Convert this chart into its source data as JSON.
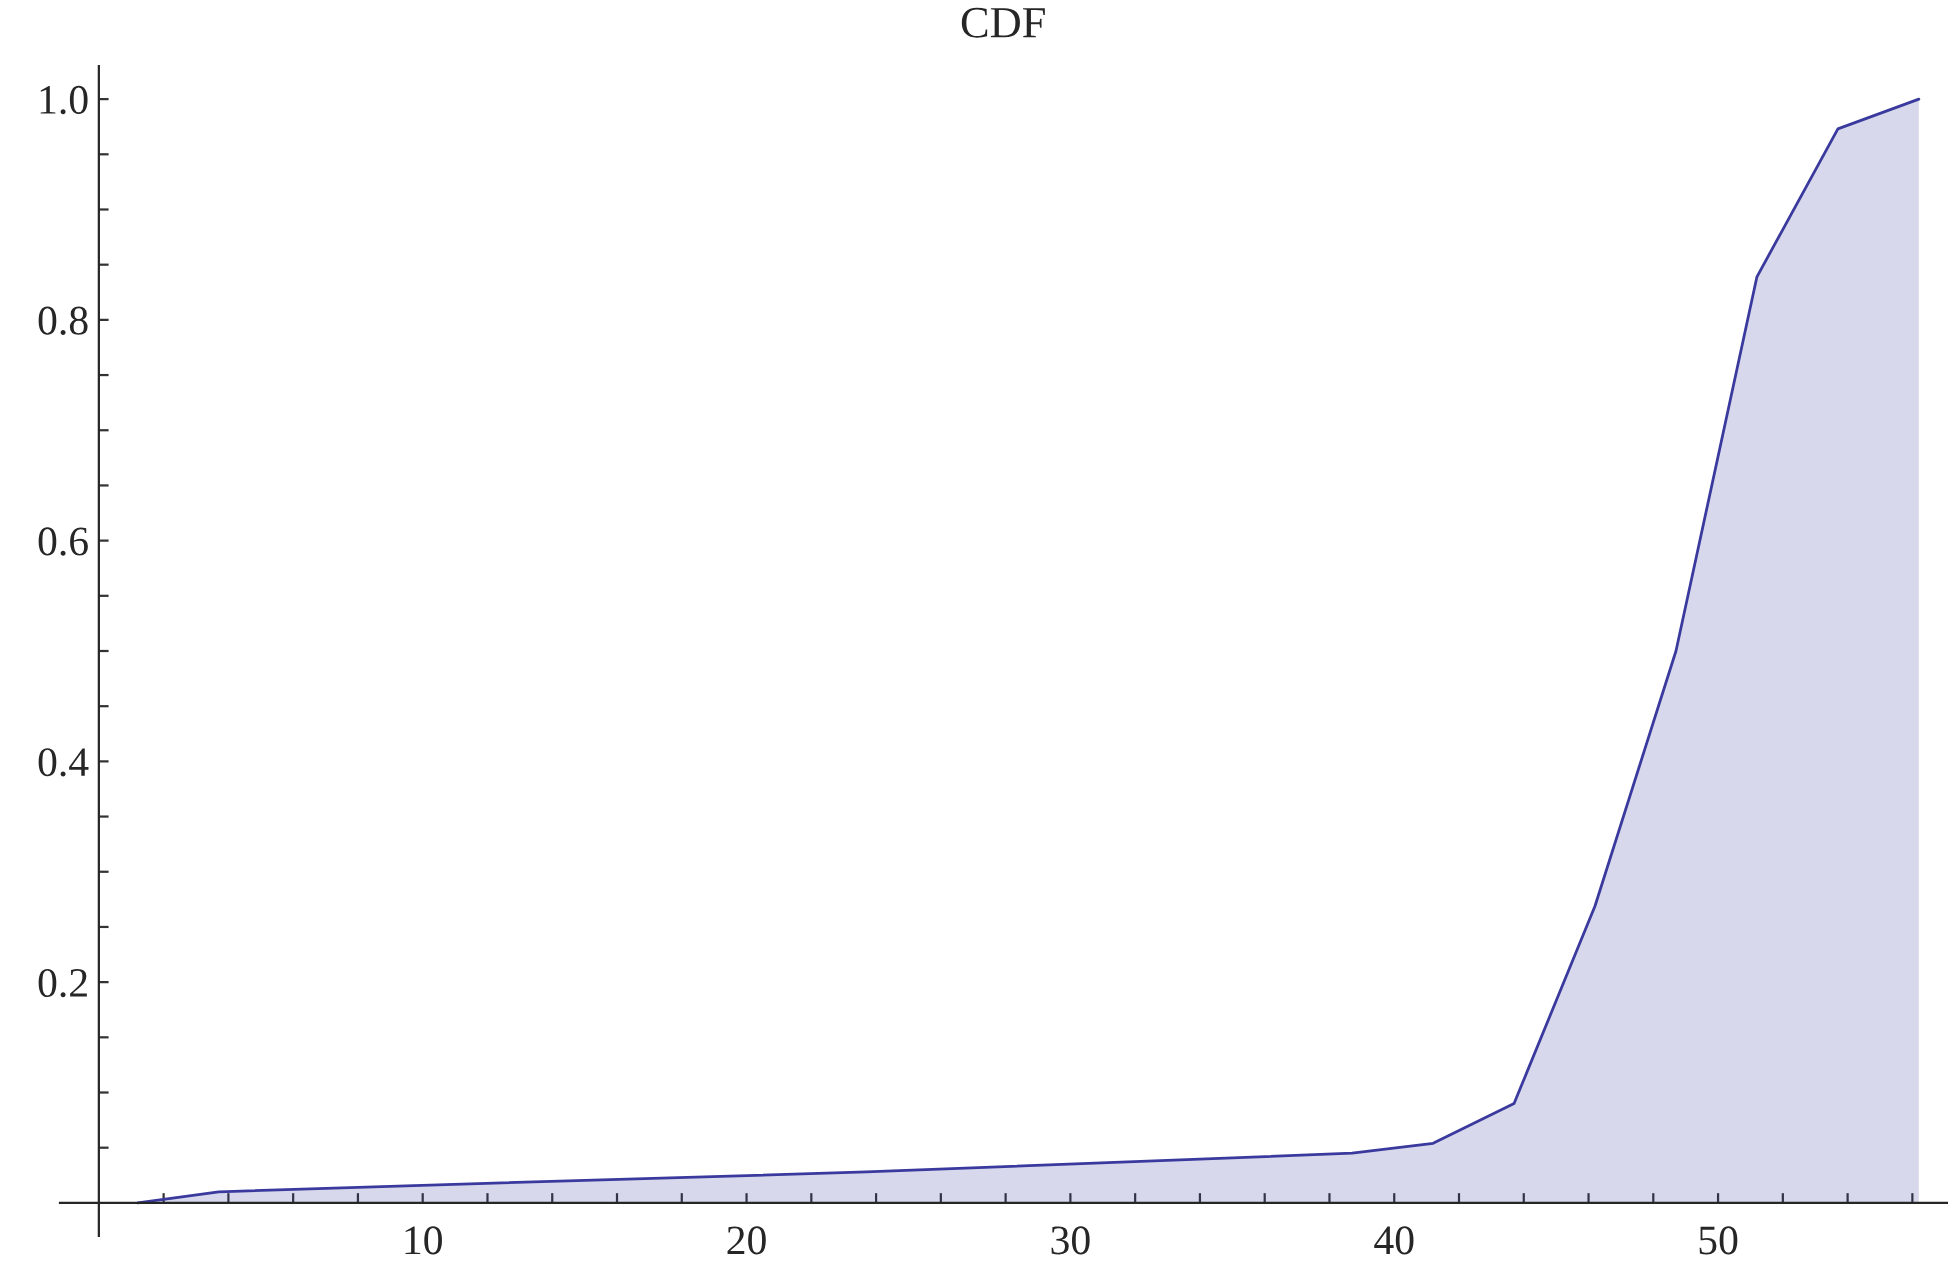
{
  "chart_data": {
    "type": "area",
    "title": "CDF",
    "x": [
      1.2,
      3.7,
      12.2,
      23.7,
      38.7,
      41.2,
      43.7,
      46.2,
      48.7,
      51.2,
      53.7,
      56.2
    ],
    "series": [
      {
        "color": "#3a3a9e",
        "values": [
          0.0,
          0.01,
          0.018,
          0.028,
          0.045,
          0.054,
          0.09,
          0.269,
          0.5,
          0.839,
          0.973,
          1.0
        ]
      }
    ],
    "xlim": [
      -1.2,
      57.1
    ],
    "ylim": [
      -0.03,
      1.03
    ],
    "xticks": [
      {
        "value": 2,
        "label": null
      },
      {
        "value": 4,
        "label": null
      },
      {
        "value": 6,
        "label": null
      },
      {
        "value": 8,
        "label": null
      },
      10,
      {
        "value": 12,
        "label": null
      },
      {
        "value": 14,
        "label": null
      },
      {
        "value": 16,
        "label": null
      },
      {
        "value": 18,
        "label": null
      },
      20,
      {
        "value": 22,
        "label": null
      },
      {
        "value": 24,
        "label": null
      },
      {
        "value": 26,
        "label": null
      },
      {
        "value": 28,
        "label": null
      },
      30,
      {
        "value": 32,
        "label": null
      },
      {
        "value": 34,
        "label": null
      },
      {
        "value": 36,
        "label": null
      },
      {
        "value": 38,
        "label": null
      },
      40,
      {
        "value": 42,
        "label": null
      },
      {
        "value": 44,
        "label": null
      },
      {
        "value": 46,
        "label": null
      },
      {
        "value": 48,
        "label": null
      },
      50,
      {
        "value": 52,
        "label": null
      },
      {
        "value": 54,
        "label": null
      },
      {
        "value": 56,
        "label": null
      }
    ],
    "yticks": [
      {
        "value": 0.05,
        "label": null
      },
      {
        "value": 0.1,
        "label": null
      },
      {
        "value": 0.15,
        "label": null
      },
      {
        "value": 0.2,
        "label": "0.2"
      },
      {
        "value": 0.25,
        "label": null
      },
      {
        "value": 0.3,
        "label": null
      },
      {
        "value": 0.35,
        "label": null
      },
      {
        "value": 0.4,
        "label": "0.4"
      },
      {
        "value": 0.45,
        "label": null
      },
      {
        "value": 0.5,
        "label": null
      },
      {
        "value": 0.55,
        "label": null
      },
      {
        "value": 0.6,
        "label": "0.6"
      },
      {
        "value": 0.65,
        "label": null
      },
      {
        "value": 0.7,
        "label": null
      },
      {
        "value": 0.75,
        "label": null
      },
      {
        "value": 0.8,
        "label": "0.8"
      },
      {
        "value": 0.85,
        "label": null
      },
      {
        "value": 0.9,
        "label": null
      },
      {
        "value": 0.95,
        "label": null
      },
      {
        "value": 1.0,
        "label": "1.0"
      }
    ],
    "grid": false,
    "legend": false
  }
}
